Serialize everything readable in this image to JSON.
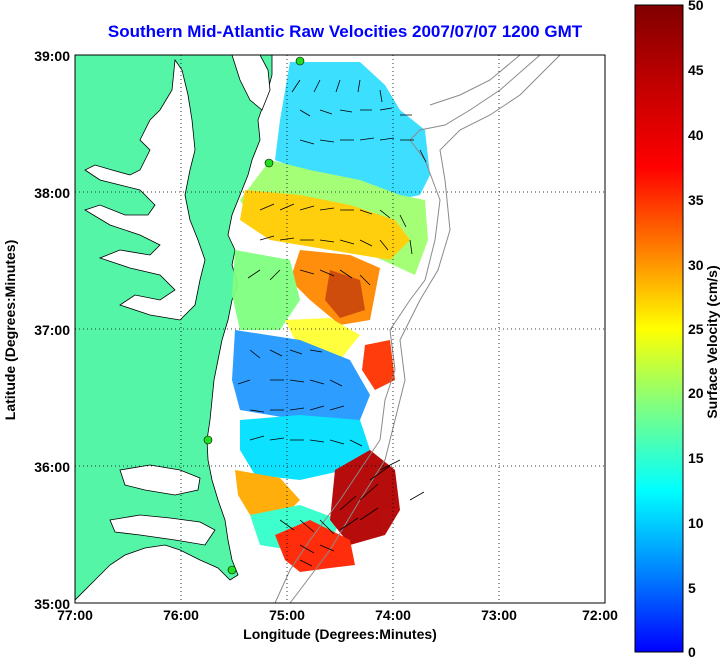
{
  "title": "Southern Mid-Atlantic Raw Velocities 2007/07/07 1200 GMT",
  "axes": {
    "xlabel": "Longitude (Degrees:Minutes)",
    "ylabel": "Latitude (Degrees:Minutes)",
    "x_ticks": [
      "77:00",
      "76:00",
      "75:00",
      "74:00",
      "73:00",
      "72:00"
    ],
    "y_ticks": [
      "39:00",
      "38:00",
      "37:00",
      "36:00",
      "35:00"
    ],
    "x_range": [
      -77,
      -72
    ],
    "y_range": [
      35,
      39
    ],
    "grid": true,
    "grid_style": "dotted"
  },
  "colorbar": {
    "label": "Surface Velocity (cm/s)",
    "ticks": [
      "50",
      "45",
      "40",
      "35",
      "30",
      "25",
      "20",
      "15",
      "10",
      "5",
      "0"
    ],
    "range": [
      0,
      50
    ],
    "colormap": "jet",
    "position": "right"
  },
  "colors": {
    "land": "#55f5a8",
    "water": "#ffffff",
    "title": "#0000ff",
    "bathymetry": "#8a8a8a",
    "station_marker": "#22dd22"
  },
  "stations": [
    {
      "lon": -75.09,
      "lat": 38.99
    },
    {
      "lon": -75.1,
      "lat": 38.22
    },
    {
      "lon": -75.68,
      "lat": 36.17
    },
    {
      "lon": -75.46,
      "lat": 35.24
    }
  ]
}
